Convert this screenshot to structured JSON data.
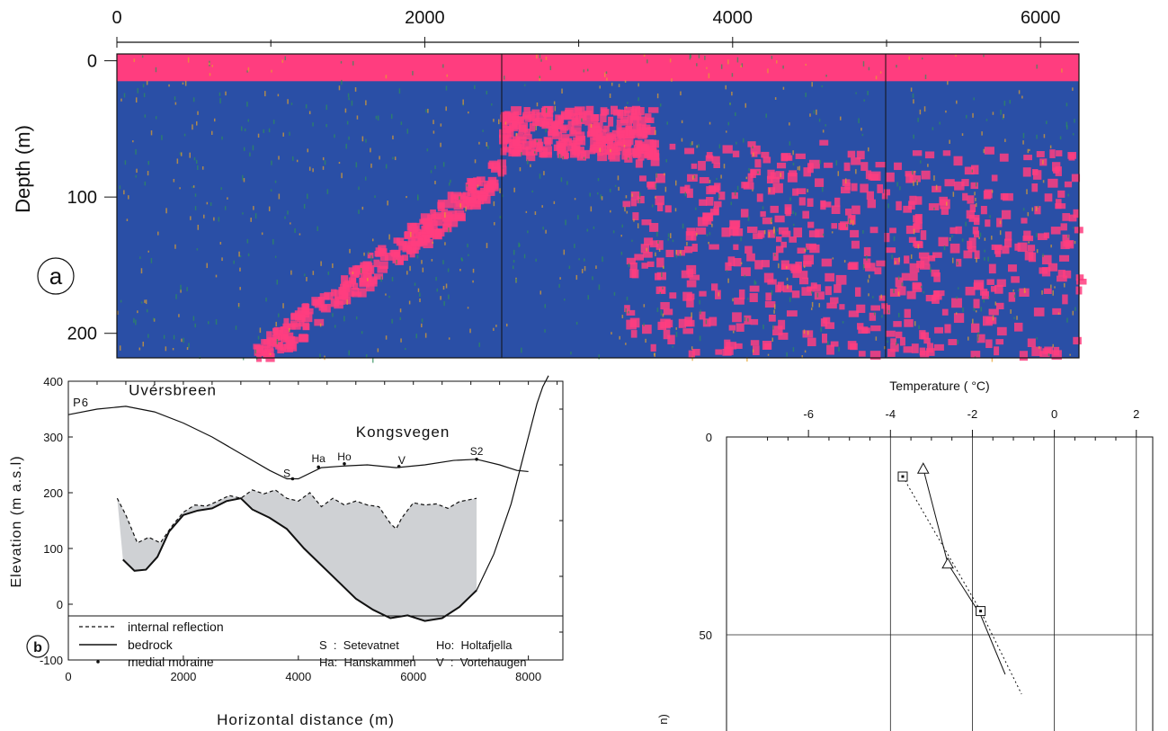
{
  "chart_data": [
    {
      "type": "heatmap",
      "panel_label": "a",
      "ylabel": "Depth (m)",
      "x_ticks": [
        "0",
        "2000",
        "4000",
        "6000"
      ],
      "y_ticks": [
        "0",
        "100",
        "200"
      ],
      "xlim": [
        0,
        6250
      ],
      "ylim": [
        -5,
        218
      ],
      "colors": {
        "background": "#2a4fa6",
        "reflection": "#ff3d7f",
        "speckle_a": "#e7a32a",
        "speckle_b": "#2f8f5a"
      },
      "surface_band_depth_m": [
        0,
        15
      ],
      "reflectors": [
        {
          "from_x_m": 900,
          "to_x_m": 2500,
          "depth_from_m": 218,
          "depth_to_m": 80
        },
        {
          "from_x_m": 2500,
          "to_x_m": 3500,
          "depth_from_m": 35,
          "depth_to_m": 70
        },
        {
          "from_x_m": 3300,
          "to_x_m": 4750,
          "depth_from_m": 60,
          "depth_to_m": 215
        },
        {
          "from_x_m": 4750,
          "to_x_m": 6250,
          "depth_from_m": 65,
          "depth_to_m": 215
        }
      ]
    },
    {
      "type": "line",
      "panel_label": "b",
      "xlabel": "Horizontal distance (m)",
      "ylabel": "Elevation (m a.s.l)",
      "xlim": [
        0,
        8600
      ],
      "ylim": [
        -100,
        400
      ],
      "x_ticks": [
        "0",
        "2000",
        "4000",
        "6000",
        "8000"
      ],
      "y_ticks": [
        "-100",
        "0",
        "100",
        "200",
        "300",
        "400"
      ],
      "title_labels": [
        {
          "text": "P6",
          "x": 80,
          "y": 355
        },
        {
          "text": "Uvérsbreen",
          "x": 1050,
          "y": 375
        },
        {
          "text": "Kongsvegen",
          "x": 5000,
          "y": 300
        }
      ],
      "point_labels": [
        {
          "text": "S",
          "x": 3800,
          "y": 228
        },
        {
          "text": "Ha",
          "x": 4350,
          "y": 255
        },
        {
          "text": "Ho",
          "x": 4800,
          "y": 258
        },
        {
          "text": "V",
          "x": 5800,
          "y": 252
        },
        {
          "text": "S2",
          "x": 7100,
          "y": 268
        }
      ],
      "series": [
        {
          "name": "surface",
          "style": "solid",
          "x": [
            0,
            500,
            1000,
            1500,
            2000,
            2500,
            3000,
            3500,
            3800,
            4000,
            4400,
            4800,
            5200,
            5700,
            6200,
            6700,
            7100,
            7500,
            7800,
            8000
          ],
          "y": [
            340,
            350,
            355,
            345,
            325,
            300,
            270,
            240,
            225,
            225,
            245,
            248,
            250,
            245,
            250,
            258,
            260,
            250,
            240,
            238
          ]
        },
        {
          "name": "internal reflection",
          "style": "dashed",
          "x": [
            850,
            1000,
            1200,
            1400,
            1600,
            1800,
            2000,
            2200,
            2400,
            2600,
            2800,
            3000,
            3200,
            3400,
            3600,
            3800,
            4000,
            4200,
            4400,
            4600,
            4800,
            5000,
            5200,
            5400,
            5600,
            5700,
            5800,
            6000,
            6200,
            6400,
            6600,
            6800,
            7000,
            7100
          ],
          "y": [
            190,
            160,
            110,
            120,
            110,
            140,
            165,
            178,
            176,
            185,
            195,
            190,
            205,
            198,
            205,
            190,
            185,
            200,
            175,
            190,
            178,
            185,
            178,
            175,
            145,
            135,
            155,
            182,
            178,
            180,
            172,
            184,
            188,
            190
          ]
        },
        {
          "name": "bedrock",
          "style": "solid",
          "x": [
            950,
            1150,
            1350,
            1550,
            1750,
            2000,
            2250,
            2500,
            2750,
            3000,
            3200,
            3500,
            3800,
            4100,
            4400,
            4700,
            5000,
            5300,
            5600,
            5900,
            6200,
            6500,
            6800,
            7000,
            7100
          ],
          "y": [
            80,
            60,
            62,
            85,
            130,
            160,
            168,
            172,
            185,
            190,
            170,
            155,
            135,
            100,
            70,
            40,
            10,
            -10,
            -25,
            -20,
            -30,
            -25,
            -5,
            15,
            25
          ]
        },
        {
          "name": "valley wall",
          "style": "solid",
          "x": [
            7100,
            7400,
            7700,
            7900,
            8050,
            8150,
            8250,
            8350
          ],
          "y": [
            25,
            90,
            180,
            260,
            320,
            360,
            390,
            410
          ]
        }
      ],
      "medial_moraine_points": [
        {
          "x": 3900,
          "y": 225
        },
        {
          "x": 4350,
          "y": 246
        },
        {
          "x": 4800,
          "y": 252
        },
        {
          "x": 5750,
          "y": 247
        },
        {
          "x": 7100,
          "y": 260
        }
      ],
      "legend": {
        "position": "bottom",
        "items": [
          {
            "style": "dashed",
            "label": "internal reflection"
          },
          {
            "style": "solid",
            "label": "bedrock"
          },
          {
            "style": "point",
            "label": "medial moraine"
          }
        ],
        "abbreviations": [
          {
            "label": "S  :  Setevatnet"
          },
          {
            "label": "Ho:  Holtafjella"
          },
          {
            "label": "Ha:  Hanskammen"
          },
          {
            "label": "V  :  Vortehaugen"
          }
        ]
      }
    },
    {
      "type": "line",
      "xlabel": "Temperature ( °C)",
      "ylabel": "",
      "xlim": [
        -8,
        2.4
      ],
      "ylim": [
        0,
        75
      ],
      "x_ticks": [
        "-6",
        "-4",
        "-2",
        "0",
        "2"
      ],
      "y_ticks": [
        "0",
        "50"
      ],
      "grid": true,
      "series": [
        {
          "marker": "triangle",
          "style": "solid",
          "x": [
            -3.2,
            -2.6,
            -1.8,
            -1.2
          ],
          "y": [
            8,
            32,
            45,
            60
          ]
        },
        {
          "marker": "square",
          "style": "dotted",
          "x": [
            -3.7,
            -1.8,
            -0.8
          ],
          "y": [
            10,
            44,
            65
          ]
        }
      ],
      "points": [
        {
          "marker": "triangle",
          "x": -3.2,
          "y": 8
        },
        {
          "marker": "triangle",
          "x": -2.6,
          "y": 32
        },
        {
          "marker": "square",
          "x": -3.7,
          "y": 10
        },
        {
          "marker": "square",
          "x": -1.8,
          "y": 44
        }
      ],
      "partial_ylabel": "n)"
    }
  ]
}
